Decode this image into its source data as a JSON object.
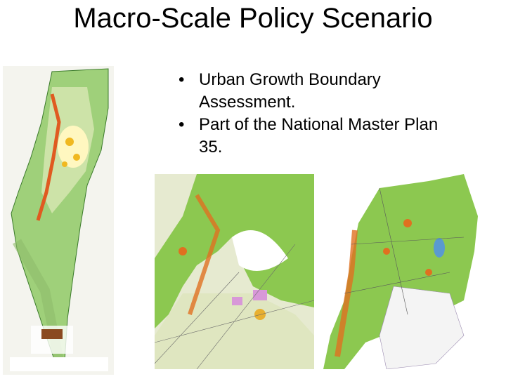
{
  "title": "Macro-Scale Policy Scenario",
  "bullets": [
    "Urban Growth Boundary Assessment.",
    "Part of the National Master Plan 35."
  ]
}
